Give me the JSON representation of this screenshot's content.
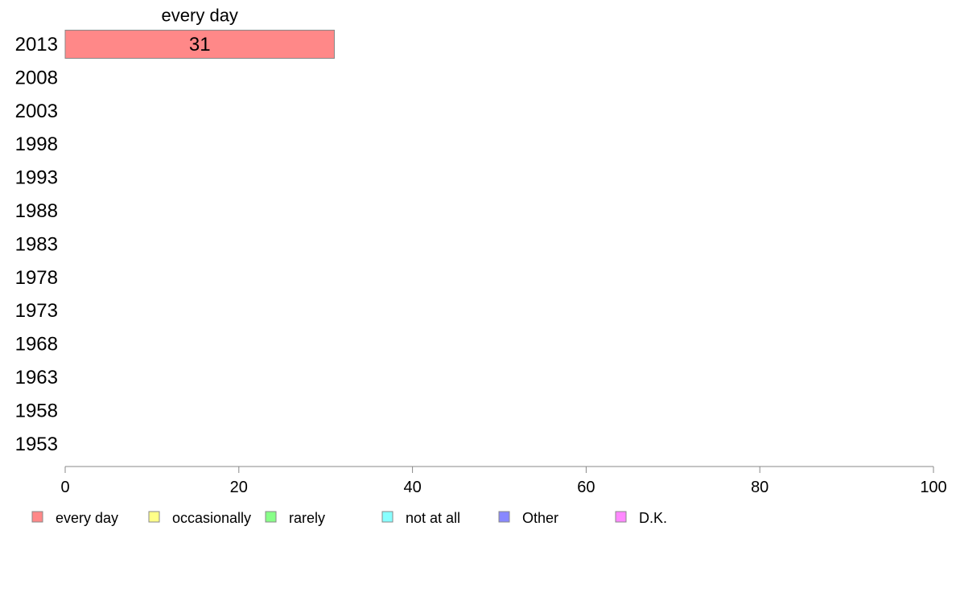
{
  "chart_data": {
    "type": "bar",
    "orientation": "horizontal",
    "stacked": true,
    "categories": [
      "2013",
      "2008",
      "2003",
      "1998",
      "1993",
      "1988",
      "1983",
      "1978",
      "1973",
      "1968",
      "1963",
      "1958",
      "1953"
    ],
    "series": [
      {
        "name": "every day",
        "color": "#ff8888",
        "values": [
          31,
          null,
          null,
          null,
          null,
          null,
          null,
          null,
          null,
          null,
          null,
          null,
          null
        ]
      },
      {
        "name": "occasionally",
        "color": "#ffff88",
        "values": [
          null,
          null,
          null,
          null,
          null,
          null,
          null,
          null,
          null,
          null,
          null,
          null,
          null
        ]
      },
      {
        "name": "rarely",
        "color": "#88ff88",
        "values": [
          null,
          null,
          null,
          null,
          null,
          null,
          null,
          null,
          null,
          null,
          null,
          null,
          null
        ]
      },
      {
        "name": "not at all",
        "color": "#88ffff",
        "values": [
          null,
          null,
          null,
          null,
          null,
          null,
          null,
          null,
          null,
          null,
          null,
          null,
          null
        ]
      },
      {
        "name": "Other",
        "color": "#8888ff",
        "values": [
          null,
          null,
          null,
          null,
          null,
          null,
          null,
          null,
          null,
          null,
          null,
          null,
          null
        ]
      },
      {
        "name": "D.K.",
        "color": "#ff88ff",
        "values": [
          null,
          null,
          null,
          null,
          null,
          null,
          null,
          null,
          null,
          null,
          null,
          null,
          null
        ]
      }
    ],
    "segment_titles": [
      {
        "series": "every day",
        "category": "2013",
        "text": "every day"
      }
    ],
    "xlim": [
      0,
      100
    ],
    "xticks": [
      0,
      20,
      40,
      60,
      80,
      100
    ],
    "grid": false,
    "legend_position": "bottom"
  }
}
